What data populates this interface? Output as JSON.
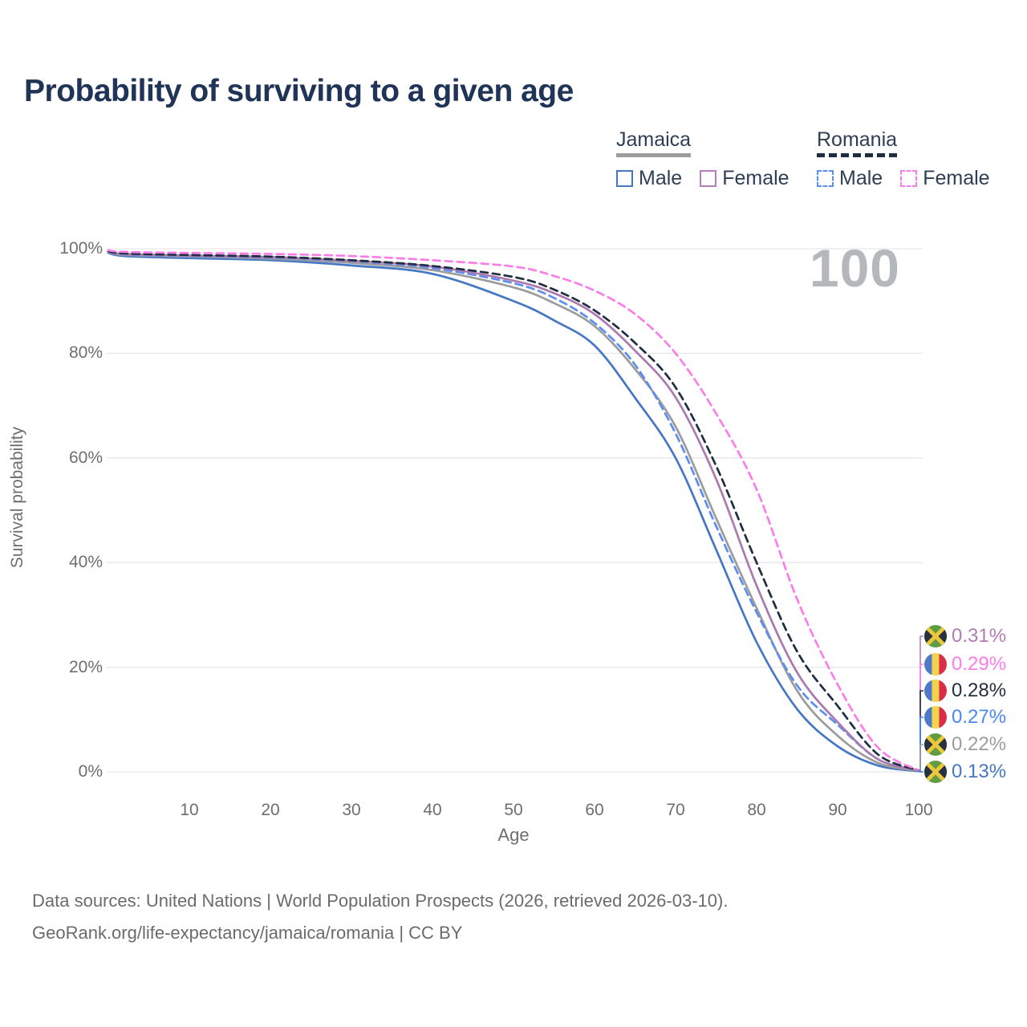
{
  "title": "Probability of surviving to a given age",
  "watermark_age": "100",
  "legend": {
    "groups": [
      {
        "country": "Jamaica",
        "line_color": "#9c9c9c",
        "line_style": "solid",
        "items": [
          {
            "label": "Male",
            "color": "#4577c5",
            "style": "solid"
          },
          {
            "label": "Female",
            "color": "#b77dbf",
            "style": "solid"
          }
        ]
      },
      {
        "country": "Romania",
        "line_color": "#1e2d40",
        "line_style": "dashed",
        "items": [
          {
            "label": "Male",
            "color": "#5b8ef0",
            "style": "dashed"
          },
          {
            "label": "Female",
            "color": "#fb7deb",
            "style": "dashed"
          }
        ]
      }
    ]
  },
  "axes": {
    "y_label": "Survival probability",
    "x_label": "Age",
    "y_ticks": [
      {
        "value": 0,
        "label": "0%"
      },
      {
        "value": 20,
        "label": "20%"
      },
      {
        "value": 40,
        "label": "40%"
      },
      {
        "value": 60,
        "label": "60%"
      },
      {
        "value": 80,
        "label": "80%"
      },
      {
        "value": 100,
        "label": "100%"
      }
    ],
    "x_ticks": [
      10,
      20,
      30,
      40,
      50,
      60,
      70,
      80,
      90,
      100
    ]
  },
  "chart_data": {
    "type": "line",
    "title": "Probability of surviving to a given age",
    "xlabel": "Age",
    "ylabel": "Survival probability",
    "xlim": [
      0,
      100
    ],
    "ylim": [
      0,
      100
    ],
    "grid": "horizontal",
    "legend_position": "top-right",
    "x": [
      0,
      2,
      10,
      20,
      30,
      40,
      50,
      55,
      60,
      65,
      70,
      75,
      80,
      85,
      90,
      95,
      100
    ],
    "series": [
      {
        "name": "Jamaica Male",
        "color": "#4577c5",
        "style": "solid",
        "values": [
          99.2,
          98.6,
          98.2,
          97.8,
          96.8,
          95.2,
          90.0,
          86.3,
          81.5,
          71.5,
          60.0,
          42.5,
          24.8,
          12.0,
          4.9,
          1.2,
          0.13
        ]
      },
      {
        "name": "Jamaica",
        "color": "#9c9c9c",
        "style": "solid",
        "values": [
          99.3,
          98.8,
          98.5,
          98.1,
          97.3,
          95.9,
          92.6,
          89.6,
          85.2,
          77.0,
          66.0,
          48.5,
          31.3,
          15.5,
          6.9,
          1.7,
          0.22
        ]
      },
      {
        "name": "Romania Male",
        "color": "#5b8ef0",
        "style": "dashed",
        "values": [
          99.4,
          98.9,
          98.6,
          98.3,
          97.6,
          96.3,
          93.4,
          90.6,
          85.8,
          77.8,
          64.7,
          47.0,
          30.5,
          16.5,
          9.0,
          2.4,
          0.27
        ]
      },
      {
        "name": "Jamaica Female",
        "color": "#ab79b0",
        "style": "solid",
        "values": [
          99.4,
          99.0,
          98.7,
          98.4,
          97.7,
          96.6,
          93.9,
          91.5,
          87.5,
          80.5,
          71.6,
          56.0,
          35.6,
          19.0,
          9.5,
          2.4,
          0.31
        ]
      },
      {
        "name": "Romania",
        "color": "#1e2d40",
        "style": "dashed",
        "values": [
          99.5,
          99.1,
          98.8,
          98.5,
          97.8,
          96.7,
          94.6,
          92.2,
          88.2,
          82.0,
          73.5,
          58.5,
          40.0,
          23.0,
          12.6,
          3.3,
          0.28
        ]
      },
      {
        "name": "Romania Female",
        "color": "#fb7de8",
        "style": "dashed",
        "values": [
          99.7,
          99.4,
          99.2,
          99.0,
          98.6,
          97.8,
          96.6,
          94.8,
          92.0,
          87.5,
          80.0,
          68.5,
          54.0,
          33.0,
          16.7,
          4.6,
          0.29
        ]
      }
    ]
  },
  "end_labels": [
    {
      "value": "0.31%",
      "flag": "jamaica",
      "color": "#b27cb2",
      "series": "Jamaica Female"
    },
    {
      "value": "0.29%",
      "flag": "romania",
      "color": "#fb7de8",
      "series": "Romania Female"
    },
    {
      "value": "0.28%",
      "flag": "romania",
      "color": "#22303f",
      "series": "Romania"
    },
    {
      "value": "0.27%",
      "flag": "romania",
      "color": "#4b87f0",
      "series": "Romania Male"
    },
    {
      "value": "0.22%",
      "flag": "jamaica",
      "color": "#9c9c9c",
      "series": "Jamaica"
    },
    {
      "value": "0.13%",
      "flag": "jamaica",
      "color": "#4577c5",
      "series": "Jamaica Male"
    }
  ],
  "flag_colors": {
    "jamaica": {
      "green": "#5f9c42",
      "black": "#27313f",
      "gold": "#edc83d"
    },
    "romania": {
      "blue": "#4f79c9",
      "yellow": "#f3d348",
      "red": "#da2e44"
    }
  },
  "footer": {
    "line1": "Data sources: United Nations | World Population Prospects (2026, retrieved 2026-03-10).",
    "line2": "GeoRank.org/life-expectancy/jamaica/romania | CC BY"
  }
}
